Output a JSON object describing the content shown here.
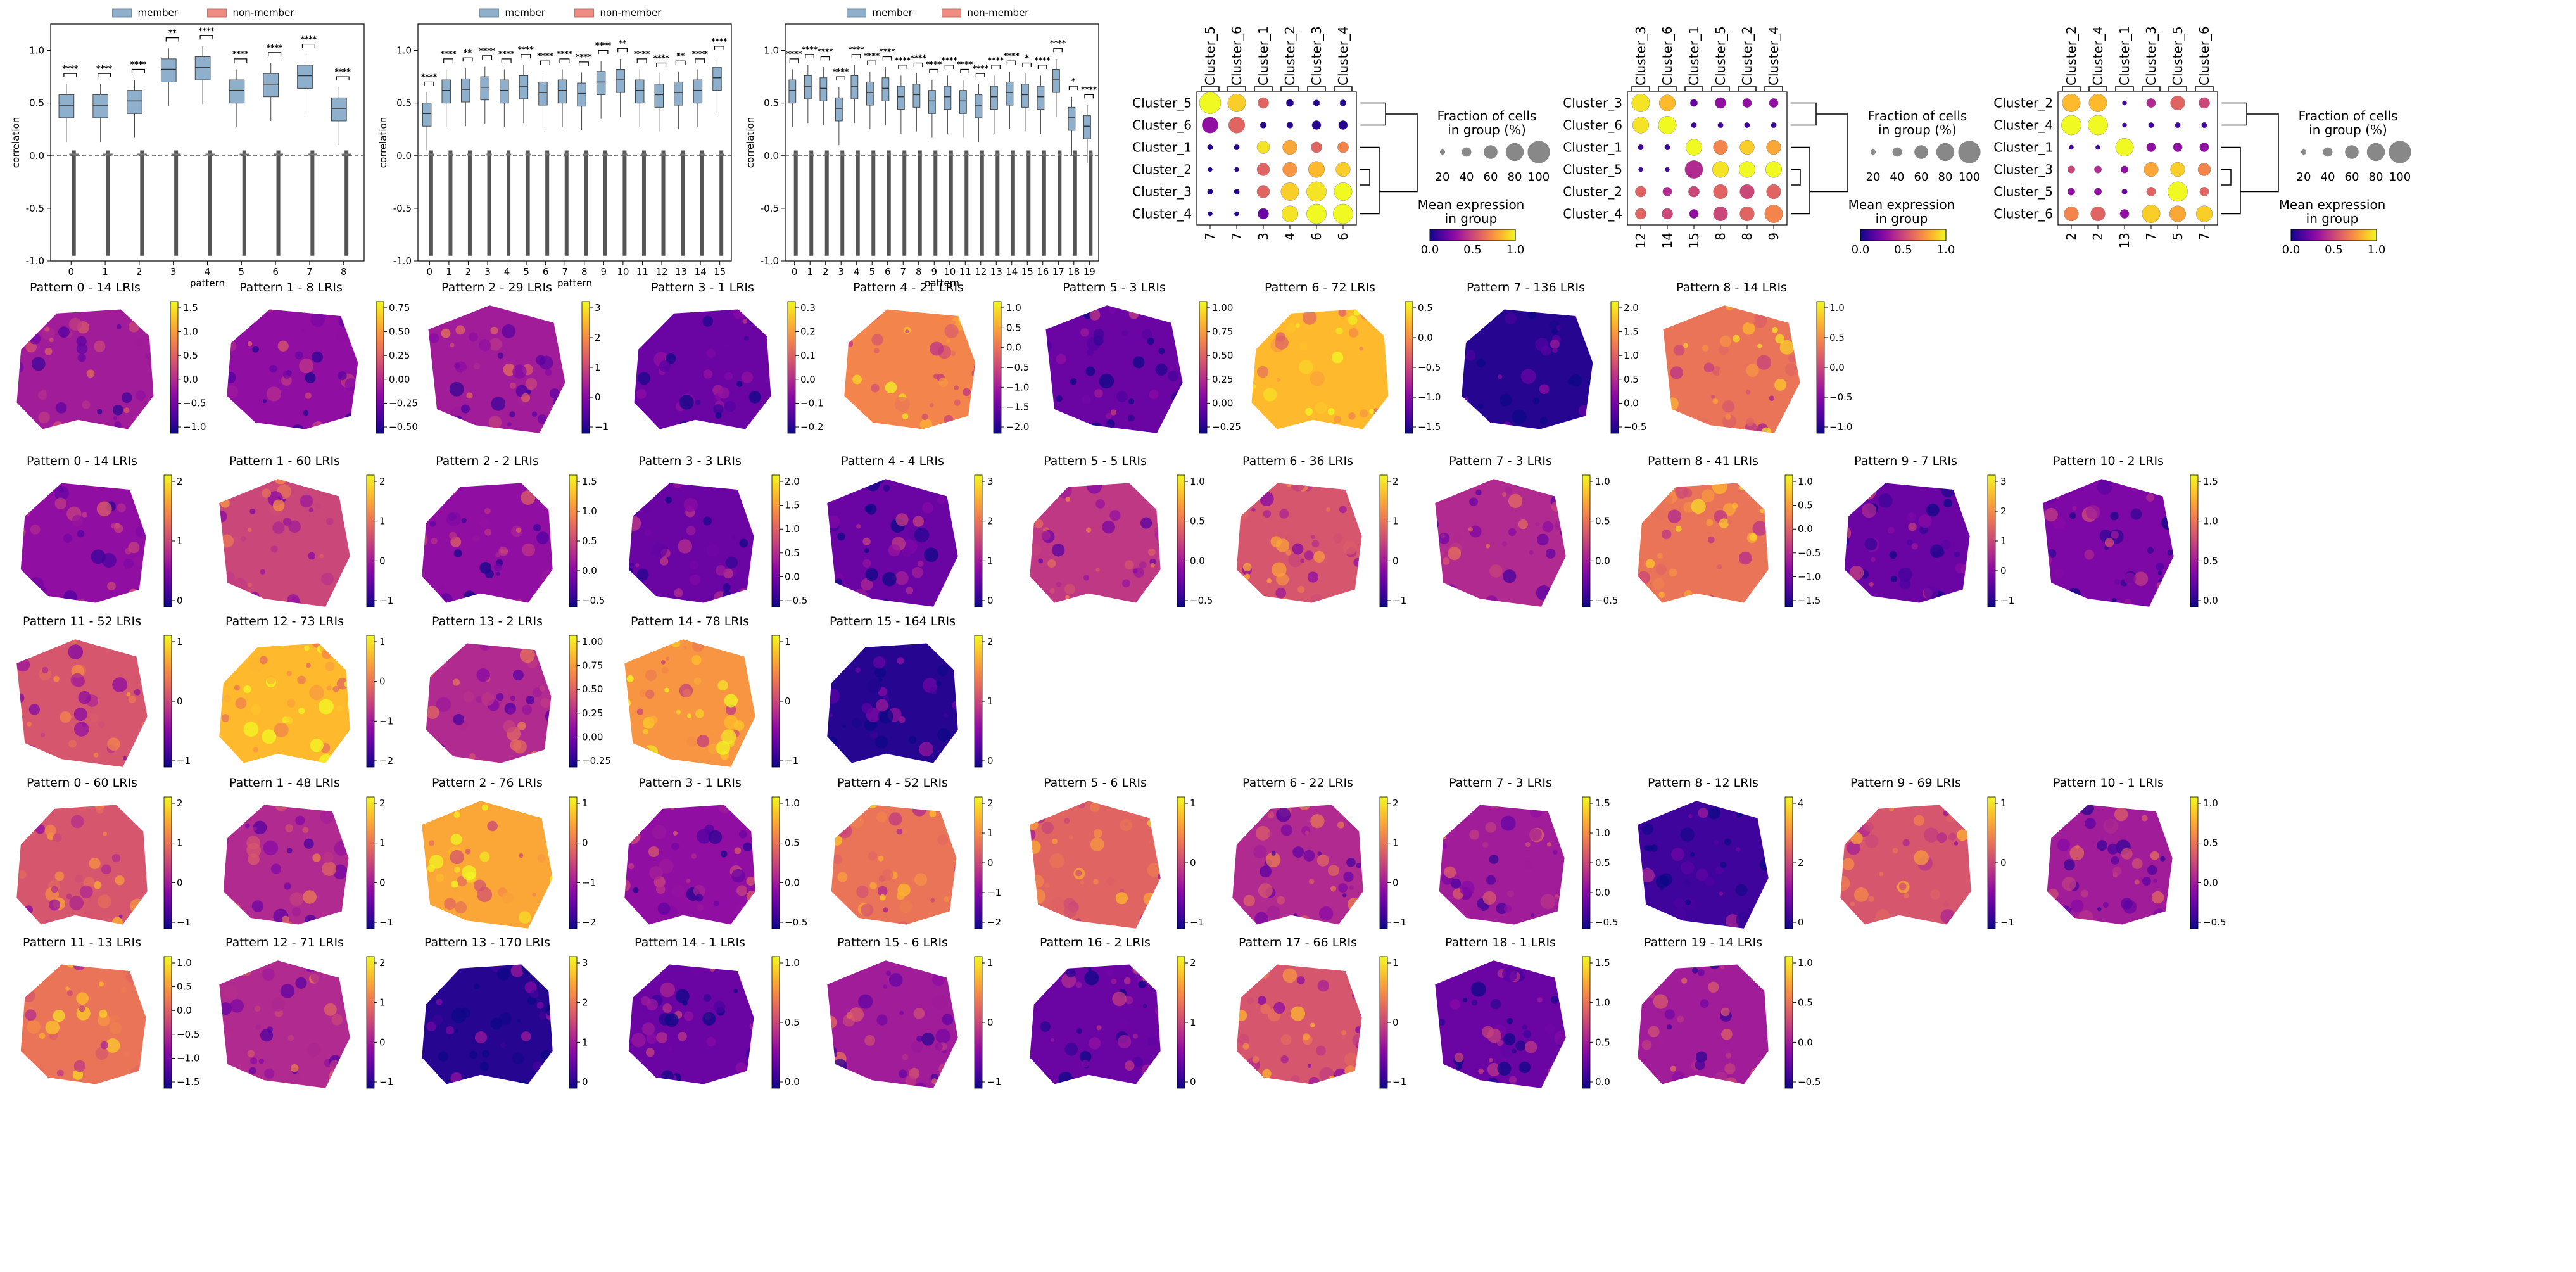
{
  "legend": {
    "member": "member",
    "non_member": "non-member",
    "member_color": "#8fb0cc",
    "non_member_color": "#f08c82"
  },
  "boxplot_axis": {
    "ylabel": "correlation",
    "xlabel": "pattern",
    "yticks": [
      "1.0",
      "0.5",
      "0.0",
      "-0.5",
      "-1.0"
    ]
  },
  "chart_data": [
    {
      "type": "box",
      "panel": "boxplot-A",
      "categories": [
        "0",
        "1",
        "2",
        "3",
        "4",
        "5",
        "6",
        "7",
        "8"
      ],
      "medians": [
        0.48,
        0.48,
        0.52,
        0.82,
        0.84,
        0.62,
        0.68,
        0.76,
        0.45
      ],
      "sig": [
        "****",
        "****",
        "****",
        "**",
        "****",
        "****",
        "****",
        "****",
        "****"
      ],
      "ylim": [
        -1.0,
        1.25
      ]
    },
    {
      "type": "box",
      "panel": "boxplot-B",
      "categories": [
        "0",
        "1",
        "2",
        "3",
        "4",
        "5",
        "6",
        "7",
        "8",
        "9",
        "10",
        "11",
        "12",
        "13",
        "14",
        "15"
      ],
      "medians": [
        0.4,
        0.62,
        0.63,
        0.65,
        0.62,
        0.66,
        0.6,
        0.62,
        0.59,
        0.7,
        0.72,
        0.62,
        0.58,
        0.6,
        0.62,
        0.74
      ],
      "sig": [
        "****",
        "****",
        "**",
        "****",
        "****",
        "****",
        "****",
        "****",
        "****",
        "****",
        "**",
        "****",
        "****",
        "**",
        "****",
        "****"
      ],
      "ylim": [
        -1.0,
        1.25
      ]
    },
    {
      "type": "box",
      "panel": "boxplot-C",
      "categories": [
        "0",
        "1",
        "2",
        "3",
        "4",
        "5",
        "6",
        "7",
        "8",
        "9",
        "10",
        "11",
        "12",
        "13",
        "14",
        "15",
        "16",
        "17",
        "18",
        "19"
      ],
      "medians": [
        0.62,
        0.66,
        0.64,
        0.45,
        0.66,
        0.6,
        0.64,
        0.56,
        0.58,
        0.52,
        0.56,
        0.52,
        0.48,
        0.56,
        0.6,
        0.58,
        0.56,
        0.72,
        0.36,
        0.28
      ],
      "sig": [
        "****",
        "****",
        "****",
        "****",
        "****",
        "****",
        "****",
        "****",
        "****",
        "****",
        "****",
        "****",
        "****",
        "****",
        "****",
        "*",
        "****",
        "****",
        "*",
        "****"
      ],
      "ylim": [
        -1.0,
        1.25
      ]
    }
  ],
  "dotplots": [
    {
      "name": "dotplot-A",
      "cols": [
        "Cluster_5",
        "Cluster_6",
        "Cluster_1",
        "Cluster_2",
        "Cluster_3",
        "Cluster_4"
      ],
      "rows": [
        "Cluster_5",
        "Cluster_6",
        "Cluster_1",
        "Cluster_2",
        "Cluster_3",
        "Cluster_4"
      ],
      "xticks": [
        "7",
        "7",
        "3",
        "4",
        "6",
        "6"
      ],
      "size_legend_title": "Fraction of cells\nin group (%)",
      "size_labels": [
        "20",
        "40",
        "60",
        "80",
        "100"
      ],
      "color_legend_title": "Mean expression\nin group",
      "color_ticks": [
        "0.0",
        "0.5",
        "1.0"
      ],
      "values": [
        [
          1.0,
          0.9,
          0.6,
          0.05,
          0.05,
          0.05
        ],
        [
          0.3,
          0.6,
          0.05,
          0.05,
          0.05,
          0.05
        ],
        [
          0.05,
          0.05,
          0.95,
          0.8,
          0.6,
          0.7
        ],
        [
          0.05,
          0.05,
          0.6,
          0.75,
          0.85,
          0.9
        ],
        [
          0.05,
          0.05,
          0.6,
          0.9,
          0.95,
          1.0
        ],
        [
          0.05,
          0.05,
          0.2,
          0.95,
          1.0,
          1.0
        ]
      ],
      "sizes": [
        [
          1.0,
          0.8,
          0.4,
          0.2,
          0.15,
          0.15
        ],
        [
          0.7,
          0.7,
          0.15,
          0.15,
          0.3,
          0.3
        ],
        [
          0.1,
          0.1,
          0.5,
          0.6,
          0.4,
          0.4
        ],
        [
          0.05,
          0.05,
          0.5,
          0.6,
          0.7,
          0.6
        ],
        [
          0.1,
          0.1,
          0.5,
          0.8,
          0.9,
          0.8
        ],
        [
          0.05,
          0.05,
          0.4,
          0.7,
          0.9,
          0.9
        ]
      ]
    },
    {
      "name": "dotplot-B",
      "cols": [
        "Cluster_3",
        "Cluster_6",
        "Cluster_1",
        "Cluster_5",
        "Cluster_2",
        "Cluster_4"
      ],
      "rows": [
        "Cluster_3",
        "Cluster_6",
        "Cluster_1",
        "Cluster_5",
        "Cluster_2",
        "Cluster_4"
      ],
      "xticks": [
        "12",
        "14",
        "15",
        "8",
        "8",
        "9"
      ],
      "size_legend_title": "Fraction of cells\nin group (%)",
      "size_labels": [
        "20",
        "40",
        "60",
        "80",
        "100"
      ],
      "color_legend_title": "Mean expression\nin group",
      "color_ticks": [
        "0.0",
        "0.5",
        "1.0"
      ],
      "values": [
        [
          0.95,
          0.85,
          0.2,
          0.3,
          0.3,
          0.3
        ],
        [
          0.95,
          1.0,
          0.1,
          0.1,
          0.1,
          0.1
        ],
        [
          0.1,
          0.1,
          1.0,
          0.7,
          0.9,
          0.8
        ],
        [
          0.1,
          0.1,
          0.4,
          0.95,
          1.0,
          1.0
        ],
        [
          0.6,
          0.4,
          0.5,
          0.6,
          0.5,
          0.6
        ],
        [
          0.6,
          0.5,
          0.3,
          0.5,
          0.6,
          0.7
        ]
      ],
      "sizes": [
        [
          0.8,
          0.7,
          0.2,
          0.4,
          0.3,
          0.3
        ],
        [
          0.7,
          0.8,
          0.1,
          0.1,
          0.1,
          0.1
        ],
        [
          0.1,
          0.1,
          0.7,
          0.6,
          0.6,
          0.6
        ],
        [
          0.05,
          0.05,
          0.8,
          0.7,
          0.7,
          0.7
        ],
        [
          0.4,
          0.3,
          0.4,
          0.6,
          0.6,
          0.6
        ],
        [
          0.4,
          0.4,
          0.3,
          0.6,
          0.6,
          0.8
        ]
      ]
    },
    {
      "name": "dotplot-C",
      "cols": [
        "Cluster_2",
        "Cluster_4",
        "Cluster_1",
        "Cluster_3",
        "Cluster_5",
        "Cluster_6"
      ],
      "rows": [
        "Cluster_2",
        "Cluster_4",
        "Cluster_1",
        "Cluster_3",
        "Cluster_5",
        "Cluster_6"
      ],
      "xticks": [
        "2",
        "2",
        "13",
        "7",
        "5",
        "7"
      ],
      "size_legend_title": "Fraction of cells\nin group (%)",
      "size_labels": [
        "20",
        "40",
        "60",
        "80",
        "100"
      ],
      "color_legend_title": "Mean expression\nin group",
      "color_ticks": [
        "0.0",
        "0.5",
        "1.0"
      ],
      "values": [
        [
          0.85,
          0.85,
          0.1,
          0.4,
          0.6,
          0.5
        ],
        [
          1.0,
          1.0,
          0.1,
          0.1,
          0.1,
          0.1
        ],
        [
          0.1,
          0.1,
          1.0,
          0.3,
          0.3,
          0.3
        ],
        [
          0.5,
          0.4,
          0.3,
          0.8,
          0.9,
          0.7
        ],
        [
          0.3,
          0.3,
          0.2,
          0.6,
          1.0,
          0.6
        ],
        [
          0.7,
          0.6,
          0.3,
          0.9,
          0.8,
          0.9
        ]
      ],
      "sizes": [
        [
          0.8,
          0.8,
          0.05,
          0.3,
          0.6,
          0.4
        ],
        [
          0.9,
          0.9,
          0.05,
          0.1,
          0.1,
          0.1
        ],
        [
          0.05,
          0.05,
          0.8,
          0.3,
          0.3,
          0.3
        ],
        [
          0.2,
          0.2,
          0.2,
          0.6,
          0.6,
          0.5
        ],
        [
          0.2,
          0.2,
          0.1,
          0.3,
          0.9,
          0.3
        ],
        [
          0.6,
          0.6,
          0.3,
          0.8,
          0.7,
          0.7
        ]
      ]
    }
  ],
  "heatmap_rows": [
    {
      "row": "row1",
      "panels": [
        {
          "title": "Pattern 0 - 14 LRIs",
          "ticks": [
            "1.5",
            "1.0",
            "0.5",
            "0.0",
            "−0.5",
            "−1.0"
          ],
          "level": 0.35
        },
        {
          "title": "Pattern 1 - 8 LRIs",
          "ticks": [
            "0.75",
            "0.50",
            "0.25",
            "0.00",
            "−0.25",
            "−0.50"
          ],
          "level": 0.3
        },
        {
          "title": "Pattern 2 - 29 LRIs",
          "ticks": [
            "3",
            "2",
            "1",
            "0",
            "−1"
          ],
          "level": 0.35
        },
        {
          "title": "Pattern 3 - 1 LRIs",
          "ticks": [
            "0.3",
            "0.2",
            "0.1",
            "0.0",
            "−0.1",
            "−0.2"
          ],
          "level": 0.2
        },
        {
          "title": "Pattern 4 - 21 LRIs",
          "ticks": [
            "1.0",
            "0.5",
            "0.0",
            "−0.5",
            "−1.0",
            "−1.5",
            "−2.0"
          ],
          "level": 0.7
        },
        {
          "title": "Pattern 5 - 3 LRIs",
          "ticks": [
            "1.00",
            "0.75",
            "0.50",
            "0.25",
            "0.00",
            "−0.25"
          ],
          "level": 0.2
        },
        {
          "title": "Pattern 6 - 72 LRIs",
          "ticks": [
            "0.5",
            "0.0",
            "−0.5",
            "−1.0",
            "−1.5"
          ],
          "level": 0.85
        },
        {
          "title": "Pattern 7 - 136 LRIs",
          "ticks": [
            "2.0",
            "1.5",
            "1.0",
            "0.5",
            "0.0",
            "−0.5"
          ],
          "level": 0.05
        },
        {
          "title": "Pattern 8 - 14 LRIs",
          "ticks": [
            "1.0",
            "0.5",
            "0.0",
            "−0.5",
            "−1.0"
          ],
          "level": 0.65
        }
      ]
    },
    {
      "row": "row2",
      "panels": [
        {
          "title": "Pattern 0 - 14 LRIs",
          "ticks": [
            "2",
            "1",
            "0"
          ],
          "level": 0.3
        },
        {
          "title": "Pattern 1 - 60 LRIs",
          "ticks": [
            "2",
            "1",
            "0",
            "−1"
          ],
          "level": 0.5
        },
        {
          "title": "Pattern 2 - 2 LRIs",
          "ticks": [
            "1.5",
            "1.0",
            "0.5",
            "0.0",
            "−0.5"
          ],
          "level": 0.3
        },
        {
          "title": "Pattern 3 - 3 LRIs",
          "ticks": [
            "2.0",
            "1.5",
            "1.0",
            "0.5",
            "0.0",
            "−0.5"
          ],
          "level": 0.2
        },
        {
          "title": "Pattern 4 - 4 LRIs",
          "ticks": [
            "3",
            "2",
            "1",
            "0"
          ],
          "level": 0.2
        },
        {
          "title": "Pattern 5 - 5 LRIs",
          "ticks": [
            "1.0",
            "0.5",
            "0.0",
            "−0.5"
          ],
          "level": 0.45
        },
        {
          "title": "Pattern 6 - 36 LRIs",
          "ticks": [
            "2",
            "1",
            "0",
            "−1"
          ],
          "level": 0.55
        },
        {
          "title": "Pattern 7 - 3 LRIs",
          "ticks": [
            "1.0",
            "0.5",
            "0.0",
            "−0.5"
          ],
          "level": 0.4
        },
        {
          "title": "Pattern 8 - 41 LRIs",
          "ticks": [
            "1.0",
            "0.5",
            "0.0",
            "−0.5",
            "−1.0",
            "−1.5"
          ],
          "level": 0.65
        },
        {
          "title": "Pattern 9 - 7 LRIs",
          "ticks": [
            "3",
            "2",
            "1",
            "0",
            "−1"
          ],
          "level": 0.2
        },
        {
          "title": "Pattern 10 - 2 LRIs",
          "ticks": [
            "1.5",
            "1.0",
            "0.5",
            "0.0"
          ],
          "level": 0.25
        }
      ]
    },
    {
      "row": "row3",
      "panels": [
        {
          "title": "Pattern 11 - 52 LRIs",
          "ticks": [
            "1",
            "0",
            "−1"
          ],
          "level": 0.55
        },
        {
          "title": "Pattern 12 - 73 LRIs",
          "ticks": [
            "1",
            "0",
            "−1",
            "−2"
          ],
          "level": 0.85
        },
        {
          "title": "Pattern 13 - 2 LRIs",
          "ticks": [
            "1.00",
            "0.75",
            "0.50",
            "0.25",
            "0.00",
            "−0.25"
          ],
          "level": 0.4
        },
        {
          "title": "Pattern 14 - 78 LRIs",
          "ticks": [
            "1",
            "0",
            "−1"
          ],
          "level": 0.75
        },
        {
          "title": "Pattern 15 - 164 LRIs",
          "ticks": [
            "2",
            "1",
            "0"
          ],
          "level": 0.05
        }
      ]
    },
    {
      "row": "row4",
      "panels": [
        {
          "title": "Pattern 0 - 60 LRIs",
          "ticks": [
            "2",
            "1",
            "0",
            "−1"
          ],
          "level": 0.55
        },
        {
          "title": "Pattern 1 - 48 LRIs",
          "ticks": [
            "2",
            "1",
            "0",
            "−1"
          ],
          "level": 0.4
        },
        {
          "title": "Pattern 2 - 76 LRIs",
          "ticks": [
            "1",
            "0",
            "−1",
            "−2"
          ],
          "level": 0.8
        },
        {
          "title": "Pattern 3 - 1 LRIs",
          "ticks": [
            "1.0",
            "0.5",
            "0.0",
            "−0.5"
          ],
          "level": 0.3
        },
        {
          "title": "Pattern 4 - 52 LRIs",
          "ticks": [
            "2",
            "1",
            "0",
            "−1",
            "−2"
          ],
          "level": 0.65
        },
        {
          "title": "Pattern 5 - 6 LRIs",
          "ticks": [
            "1",
            "0",
            "−1"
          ],
          "level": 0.6
        },
        {
          "title": "Pattern 6 - 22 LRIs",
          "ticks": [
            "2",
            "1",
            "0",
            "−1"
          ],
          "level": 0.4
        },
        {
          "title": "Pattern 7 - 3 LRIs",
          "ticks": [
            "1.5",
            "1.0",
            "0.5",
            "0.0",
            "−0.5"
          ],
          "level": 0.35
        },
        {
          "title": "Pattern 8 - 12 LRIs",
          "ticks": [
            "4",
            "2",
            "0"
          ],
          "level": 0.1
        },
        {
          "title": "Pattern 9 - 69 LRIs",
          "ticks": [
            "1",
            "0",
            "−1"
          ],
          "level": 0.55
        },
        {
          "title": "Pattern 10 - 1 LRIs",
          "ticks": [
            "1.0",
            "0.5",
            "0.0",
            "−0.5"
          ],
          "level": 0.35
        }
      ]
    },
    {
      "row": "row5",
      "panels": [
        {
          "title": "Pattern 11 - 13 LRIs",
          "ticks": [
            "1.0",
            "0.5",
            "0.0",
            "−0.5",
            "−1.0",
            "−1.5"
          ],
          "level": 0.65
        },
        {
          "title": "Pattern 12 - 71 LRIs",
          "ticks": [
            "2",
            "1",
            "0",
            "−1"
          ],
          "level": 0.4
        },
        {
          "title": "Pattern 13 - 170 LRIs",
          "ticks": [
            "3",
            "2",
            "1",
            "0"
          ],
          "level": 0.05
        },
        {
          "title": "Pattern 14 - 1 LRIs",
          "ticks": [
            "1.0",
            "0.5",
            "0.0"
          ],
          "level": 0.2
        },
        {
          "title": "Pattern 15 - 6 LRIs",
          "ticks": [
            "1",
            "0",
            "−1"
          ],
          "level": 0.35
        },
        {
          "title": "Pattern 16 - 2 LRIs",
          "ticks": [
            "2",
            "1",
            "0"
          ],
          "level": 0.2
        },
        {
          "title": "Pattern 17 - 66 LRIs",
          "ticks": [
            "1",
            "0",
            "−1"
          ],
          "level": 0.55
        },
        {
          "title": "Pattern 18 - 1 LRIs",
          "ticks": [
            "1.5",
            "1.0",
            "0.5",
            "0.0"
          ],
          "level": 0.2
        },
        {
          "title": "Pattern 19 - 14 LRIs",
          "ticks": [
            "1.0",
            "0.5",
            "0.0",
            "−0.5"
          ],
          "level": 0.35
        }
      ]
    }
  ]
}
